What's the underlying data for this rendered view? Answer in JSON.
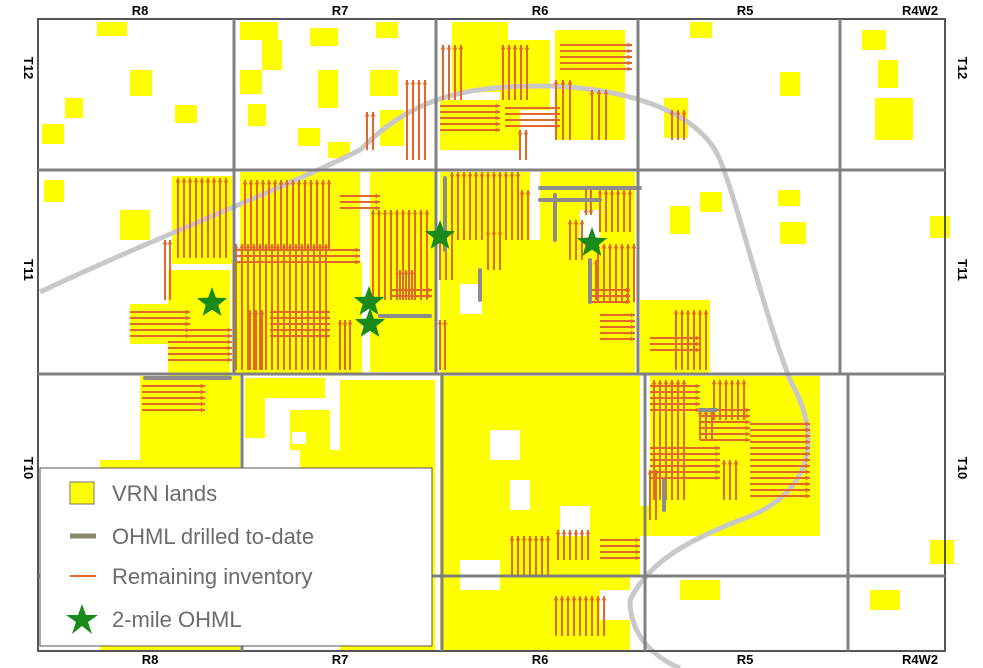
{
  "map": {
    "range_labels_top": [
      "R8",
      "R7",
      "R6",
      "R5",
      "R4W2"
    ],
    "range_labels_bottom": [
      "R8",
      "R7",
      "R6",
      "R5",
      "R4W2"
    ],
    "township_labels_left": [
      "T12",
      "T11",
      "T10"
    ],
    "township_labels_right": [
      "T12",
      "T11",
      "T10"
    ],
    "colors": {
      "vrn_lands": "#ffff00",
      "ohml_drilled": "#8c8c6a",
      "remaining_inventory": "#e0692a",
      "two_mile_ohml": "#1a8a1a",
      "grid": "#808080",
      "boundary_curve": "#c8c8c8"
    }
  },
  "legend": {
    "items": [
      {
        "label": "VRN lands",
        "icon": "yellow-square-icon"
      },
      {
        "label": "OHML drilled to-date",
        "icon": "olive-dash-icon"
      },
      {
        "label": "Remaining inventory",
        "icon": "orange-line-icon"
      },
      {
        "label": "2-mile OHML",
        "icon": "green-star-icon"
      }
    ]
  }
}
